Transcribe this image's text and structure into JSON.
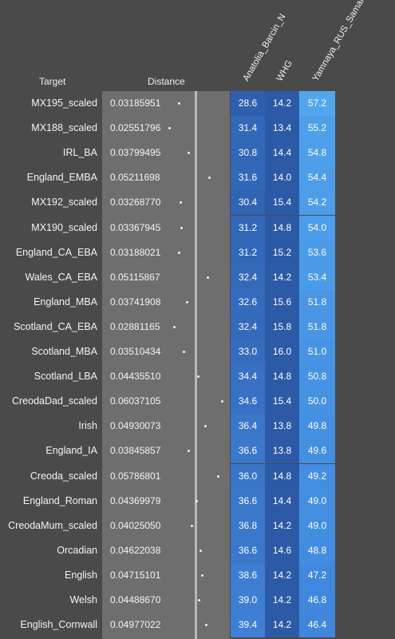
{
  "headers": {
    "target": "Target",
    "distance": "Distance",
    "col1": "Anatolia_Barcin_N",
    "col2": "WHG",
    "col3": "Yamnaya_RUS_Samara"
  },
  "colors": {
    "background": "#4a4a4a",
    "distance_column": "#6e6e6e",
    "anatolia_low": "#2f5fae",
    "anatolia_high": "#3f7fd4",
    "whg": "#2d5aa6",
    "yamnaya_high": "#52a6ee",
    "yamnaya_low": "#3f86dc"
  },
  "chart_data": {
    "type": "table",
    "distance_range": [
      0.025,
      0.061
    ],
    "columns": [
      "Target",
      "Distance",
      "Anatolia_Barcin_N",
      "WHG",
      "Yamnaya_RUS_Samara"
    ],
    "rows": [
      {
        "target": "MX195_scaled",
        "distance": "0.03185951",
        "d": 0.03185951,
        "anatolia": "28.6",
        "whg": "14.2",
        "yamnaya": "57.2"
      },
      {
        "target": "MX188_scaled",
        "distance": "0.02551796",
        "d": 0.02551796,
        "anatolia": "31.4",
        "whg": "13.4",
        "yamnaya": "55.2"
      },
      {
        "target": "IRL_BA",
        "distance": "0.03799495",
        "d": 0.03799495,
        "anatolia": "30.8",
        "whg": "14.4",
        "yamnaya": "54.8"
      },
      {
        "target": "England_EMBA",
        "distance": "0.05211698",
        "d": 0.05211698,
        "anatolia": "31.6",
        "whg": "14.0",
        "yamnaya": "54.4"
      },
      {
        "target": "MX192_scaled",
        "distance": "0.03268770",
        "d": 0.0326877,
        "anatolia": "30.4",
        "whg": "15.4",
        "yamnaya": "54.2"
      },
      {
        "target": "MX190_scaled",
        "distance": "0.03367945",
        "d": 0.03367945,
        "anatolia": "31.2",
        "whg": "14.8",
        "yamnaya": "54.0"
      },
      {
        "target": "England_CA_EBA",
        "distance": "0.03188021",
        "d": 0.03188021,
        "anatolia": "31.2",
        "whg": "15.2",
        "yamnaya": "53.6"
      },
      {
        "target": "Wales_CA_EBA",
        "distance": "0.05115867",
        "d": 0.05115867,
        "anatolia": "32.4",
        "whg": "14.2",
        "yamnaya": "53.4"
      },
      {
        "target": "England_MBA",
        "distance": "0.03741908",
        "d": 0.03741908,
        "anatolia": "32.6",
        "whg": "15.6",
        "yamnaya": "51.8"
      },
      {
        "target": "Scotland_CA_EBA",
        "distance": "0.02881165",
        "d": 0.02881165,
        "anatolia": "32.4",
        "whg": "15.8",
        "yamnaya": "51.8"
      },
      {
        "target": "Scotland_MBA",
        "distance": "0.03510434",
        "d": 0.03510434,
        "anatolia": "33.0",
        "whg": "16.0",
        "yamnaya": "51.0"
      },
      {
        "target": "Scotland_LBA",
        "distance": "0.04435510",
        "d": 0.0443551,
        "anatolia": "34.4",
        "whg": "14.8",
        "yamnaya": "50.8"
      },
      {
        "target": "CreodaDad_scaled",
        "distance": "0.06037105",
        "d": 0.06037105,
        "anatolia": "34.6",
        "whg": "15.4",
        "yamnaya": "50.0"
      },
      {
        "target": "Irish",
        "distance": "0.04930073",
        "d": 0.04930073,
        "anatolia": "36.4",
        "whg": "13.8",
        "yamnaya": "49.8"
      },
      {
        "target": "England_IA",
        "distance": "0.03845857",
        "d": 0.03845857,
        "anatolia": "36.6",
        "whg": "13.8",
        "yamnaya": "49.6"
      },
      {
        "target": "Creoda_scaled",
        "distance": "0.05786801",
        "d": 0.05786801,
        "anatolia": "36.0",
        "whg": "14.8",
        "yamnaya": "49.2"
      },
      {
        "target": "England_Roman",
        "distance": "0.04369979",
        "d": 0.04369979,
        "anatolia": "36.6",
        "whg": "14.4",
        "yamnaya": "49.0"
      },
      {
        "target": "CreodaMum_scaled",
        "distance": "0.04025050",
        "d": 0.0402505,
        "anatolia": "36.8",
        "whg": "14.2",
        "yamnaya": "49.0"
      },
      {
        "target": "Orcadian",
        "distance": "0.04622038",
        "d": 0.04622038,
        "anatolia": "36.6",
        "whg": "14.6",
        "yamnaya": "48.8"
      },
      {
        "target": "English",
        "distance": "0.04715101",
        "d": 0.04715101,
        "anatolia": "38.6",
        "whg": "14.2",
        "yamnaya": "47.2"
      },
      {
        "target": "Welsh",
        "distance": "0.04488670",
        "d": 0.0448867,
        "anatolia": "39.0",
        "whg": "14.2",
        "yamnaya": "46.8"
      },
      {
        "target": "English_Cornwall",
        "distance": "0.04977022",
        "d": 0.04977022,
        "anatolia": "39.4",
        "whg": "14.2",
        "yamnaya": "46.4"
      }
    ]
  }
}
